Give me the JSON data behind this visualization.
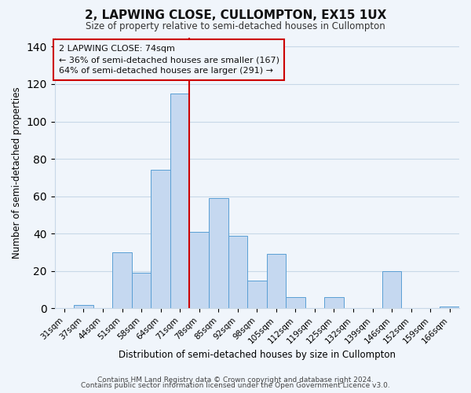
{
  "title": "2, LAPWING CLOSE, CULLOMPTON, EX15 1UX",
  "subtitle": "Size of property relative to semi-detached houses in Cullompton",
  "xlabel": "Distribution of semi-detached houses by size in Cullompton",
  "ylabel": "Number of semi-detached properties",
  "categories": [
    "31sqm",
    "37sqm",
    "44sqm",
    "51sqm",
    "58sqm",
    "64sqm",
    "71sqm",
    "78sqm",
    "85sqm",
    "92sqm",
    "98sqm",
    "105sqm",
    "112sqm",
    "119sqm",
    "125sqm",
    "132sqm",
    "139sqm",
    "146sqm",
    "152sqm",
    "159sqm",
    "166sqm"
  ],
  "values": [
    0,
    2,
    0,
    30,
    19,
    74,
    115,
    41,
    59,
    39,
    15,
    29,
    6,
    0,
    6,
    0,
    0,
    20,
    0,
    0,
    1
  ],
  "bar_color": "#c5d8f0",
  "bar_edge_color": "#5a9fd4",
  "vline_x": 6.5,
  "vline_color": "#cc0000",
  "annotation_title": "2 LAPWING CLOSE: 74sqm",
  "annotation_line1": "← 36% of semi-detached houses are smaller (167)",
  "annotation_line2": "64% of semi-detached houses are larger (291) →",
  "annotation_box_edge": "#cc0000",
  "ylim": [
    0,
    145
  ],
  "yticks": [
    0,
    20,
    40,
    60,
    80,
    100,
    120,
    140
  ],
  "footer1": "Contains HM Land Registry data © Crown copyright and database right 2024.",
  "footer2": "Contains public sector information licensed under the Open Government Licence v3.0.",
  "bg_color": "#f0f5fb"
}
